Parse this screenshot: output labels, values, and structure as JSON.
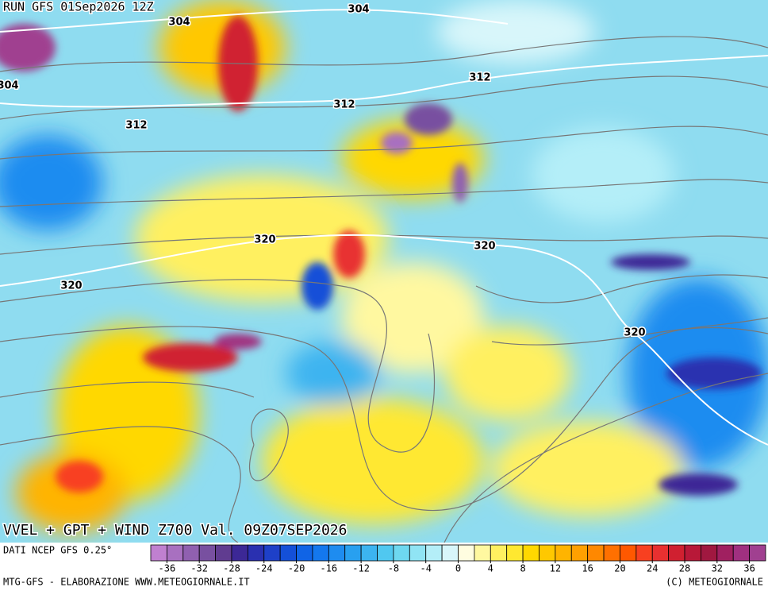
{
  "header": {
    "run": "RUN GFS 01Sep2026 12Z"
  },
  "map": {
    "title": "VVEL + GPT + WIND Z700 Val. 09Z07SEP2026",
    "contour_labels": [
      304,
      304,
      304,
      312,
      312,
      312,
      320,
      320,
      320,
      320
    ]
  },
  "legend": {
    "source": "DATI NCEP GFS 0.25°",
    "lim": [
      -38,
      38
    ],
    "ticks": [
      -36,
      -32,
      -28,
      -24,
      -20,
      -16,
      -12,
      -8,
      -4,
      0,
      4,
      8,
      12,
      16,
      20,
      24,
      28,
      32,
      36
    ],
    "colors": [
      "#c080d0",
      "#a870c0",
      "#9060b0",
      "#7850a0",
      "#603c90",
      "#3c2896",
      "#2a30b0",
      "#1e40c8",
      "#1450d8",
      "#1064e6",
      "#1478ee",
      "#1e8cf0",
      "#28a0f0",
      "#3cb4f0",
      "#50c8f0",
      "#6ed8f0",
      "#90e4f4",
      "#b4eef8",
      "#d8f6fa",
      "#fffde0",
      "#fff8a0",
      "#fff060",
      "#ffe830",
      "#ffd800",
      "#ffc800",
      "#ffb400",
      "#ffa000",
      "#ff8800",
      "#ff7000",
      "#ff5800",
      "#f84020",
      "#e83030",
      "#d02030",
      "#b81838",
      "#a01840",
      "#a02060",
      "#a03080",
      "#a04090"
    ]
  },
  "footer": {
    "left": "MTG-GFS - ELABORAZIONE WWW.METEOGIORNALE.IT",
    "right": "(C) METEOGIORNALE"
  }
}
